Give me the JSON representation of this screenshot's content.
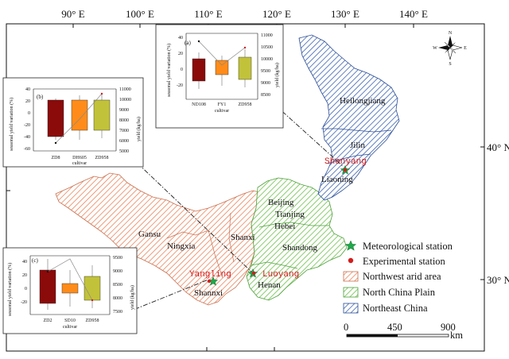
{
  "axes": {
    "top_ticks": [
      "90° E",
      "100° E",
      "110° E",
      "120° E",
      "130° E",
      "140° E"
    ],
    "right_ticks": [
      "40° N",
      "30° N"
    ]
  },
  "compass": {
    "n": "N",
    "s": "S",
    "e": "E",
    "w": "W"
  },
  "regions": {
    "northwest_provinces": [
      "Gansu",
      "Ningxia",
      "Shanxi",
      "Shannxi"
    ],
    "north_china_provinces": [
      "Beijing",
      "Tianjing",
      "Hebei",
      "Shandong",
      "Henan"
    ],
    "northeast_provinces": [
      "Heilongjiang",
      "Jilin",
      "Liaoning"
    ]
  },
  "stations": {
    "yangling": "Yangling",
    "luoyang": "Luoyang",
    "shenyang": "Shenyang"
  },
  "legend": {
    "meteo": "Meteorological station",
    "exp": "Experimental station",
    "nw": "Northwest arid area",
    "ncp": "North China Plain",
    "ne": "Northeast China"
  },
  "colors": {
    "nw": "#e8845a",
    "ncp": "#6cc04a",
    "ne": "#3a62b0",
    "station_star": "#1fa84a",
    "station_dot": "#d41c1c"
  },
  "scalebar": {
    "labels": [
      "0",
      "450",
      "900"
    ],
    "unit": "km"
  },
  "insets": [
    {
      "tag": "(a)",
      "ylabel_left": "seasonal yield variation (%)",
      "ylabel_right": "yield (kg/ha)",
      "xlabel": "cultivar",
      "left_ticks": [
        "40",
        "20",
        "0",
        "-20"
      ],
      "right_ticks": [
        "11000",
        "10500",
        "10000",
        "9500",
        "9000",
        "8500"
      ],
      "categories": [
        "ND108",
        "FY1",
        "ZD958"
      ],
      "fills": [
        "#8b0a0a",
        "#ff8c1a",
        "#c2c23a"
      ]
    },
    {
      "tag": "(b)",
      "ylabel_left": "seasonal yield variation (%)",
      "ylabel_right": "yield (kg/ha)",
      "xlabel": "cultivar",
      "left_ticks": [
        "40",
        "20",
        "0",
        "-20",
        "-40",
        "-60"
      ],
      "right_ticks": [
        "11000",
        "10000",
        "9000",
        "8000",
        "7000",
        "6000",
        "5000"
      ],
      "categories": [
        "ZD8",
        "DH605",
        "ZD958"
      ],
      "fills": [
        "#8b0a0a",
        "#ff8c1a",
        "#c2c23a"
      ]
    },
    {
      "tag": "(c)",
      "ylabel_left": "seasonal yield variation (%)",
      "ylabel_right": "yield (kg/ha)",
      "xlabel": "cultivar",
      "left_ticks": [
        "40",
        "20",
        "0",
        "-20"
      ],
      "right_ticks": [
        "9500",
        "9000",
        "8500",
        "8000",
        "7500"
      ],
      "categories": [
        "ZD2",
        "SD10",
        "ZD958"
      ],
      "fills": [
        "#8b0a0a",
        "#ff8c1a",
        "#c2c23a"
      ]
    }
  ]
}
